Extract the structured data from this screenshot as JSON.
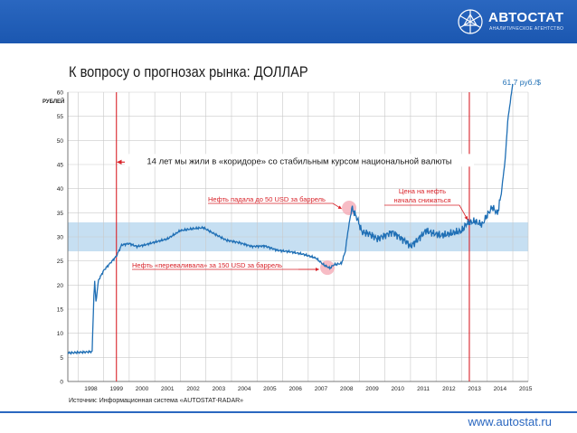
{
  "header": {
    "logo_name": "АВТОСТАТ",
    "logo_tagline": "АНАЛИТИЧЕСКОЕ АГЕНТСТВО",
    "logo_icon": "snowflake-star-icon"
  },
  "slide_title": "К вопросу о прогнозах рынка: ДОЛЛАР",
  "source_text": "Источник: Информационная система «AUTOSTAT-RADAR»",
  "footer": {
    "website": "www.autostat.ru"
  },
  "colors": {
    "brand_blue": "#2a67c0",
    "series": "#1f6fb5",
    "corridor": "#bcd9f0",
    "marker": "#d9232a"
  },
  "chart_data": {
    "type": "line",
    "title": "",
    "ylabel": "РУБЛЕЙ",
    "xlabel": "",
    "ylim": [
      0,
      60
    ],
    "xlim": [
      1997.6,
      2015.6
    ],
    "yticks": [
      0,
      5,
      10,
      15,
      20,
      25,
      30,
      35,
      40,
      45,
      50,
      55,
      60
    ],
    "xticks": [
      "1998",
      "1999",
      "2000",
      "2001",
      "2002",
      "2003",
      "2004",
      "2005",
      "2006",
      "2007",
      "2008",
      "2009",
      "2010",
      "2011",
      "2012",
      "2013",
      "2014",
      "2015"
    ],
    "grid": true,
    "corridor_band": [
      27,
      33
    ],
    "vertical_markers": [
      1999.5,
      2013.3
    ],
    "end_label": "61,7 руб./$",
    "series": [
      {
        "x": [
          1997.6,
          1997.9,
          1998.3,
          1998.55,
          1998.62,
          1998.65,
          1998.7,
          1998.8,
          1999.0,
          1999.3,
          1999.5,
          1999.7,
          2000.0,
          2000.3,
          2000.6,
          2001.0,
          2001.5,
          2002.0,
          2002.5,
          2002.9,
          2003.3,
          2003.8,
          2004.3,
          2004.8,
          2005.3,
          2005.8,
          2006.3,
          2006.8,
          2007.3,
          2007.6,
          2007.85,
          2008.0,
          2008.3,
          2008.45,
          2008.55,
          2008.7,
          2008.9,
          2009.1,
          2009.4,
          2009.7,
          2010.0,
          2010.3,
          2010.6,
          2010.9,
          2011.0,
          2011.3,
          2011.6,
          2011.9,
          2012.2,
          2012.5,
          2012.8,
          2013.0,
          2013.2,
          2013.5,
          2013.8,
          2014.0,
          2014.2,
          2014.4,
          2014.55,
          2014.7,
          2014.8,
          2014.9,
          2015.0
        ],
        "y": [
          5.9,
          6.0,
          6.1,
          6.2,
          18.0,
          20.7,
          16.5,
          21.0,
          23.0,
          24.8,
          26.0,
          28.3,
          28.6,
          28.0,
          28.3,
          28.9,
          29.6,
          31.3,
          31.7,
          31.9,
          30.7,
          29.3,
          28.8,
          28.0,
          28.1,
          27.2,
          26.9,
          26.4,
          25.6,
          24.2,
          23.5,
          24.2,
          24.5,
          27.0,
          31.0,
          36.0,
          34.0,
          31.0,
          30.6,
          29.6,
          30.3,
          31.0,
          29.8,
          28.7,
          28.0,
          29.5,
          31.3,
          30.7,
          30.3,
          30.6,
          31.0,
          31.2,
          32.8,
          33.2,
          32.5,
          34.5,
          36.2,
          34.8,
          39.0,
          46.0,
          54.0,
          58.0,
          61.7
        ]
      }
    ],
    "annotations": [
      {
        "text": "14 лет мы жили в «коридоре» со стабильным курсом национальной валюты",
        "arrow": "both",
        "from_x": 1999.5,
        "to_x": 2013.3,
        "y": 45.5
      },
      {
        "text": "Нефть падала до 50 USD за баррель",
        "points_to_x": 2008.55,
        "points_to_y": 36.2
      },
      {
        "text": "Цена на нефть начала снижаться",
        "points_to_x": 2013.3,
        "points_to_y": 33.0
      },
      {
        "text": "Нефть «переваливала» за 150 USD за баррель",
        "points_to_x": 2007.7,
        "points_to_y": 23.6
      }
    ]
  }
}
